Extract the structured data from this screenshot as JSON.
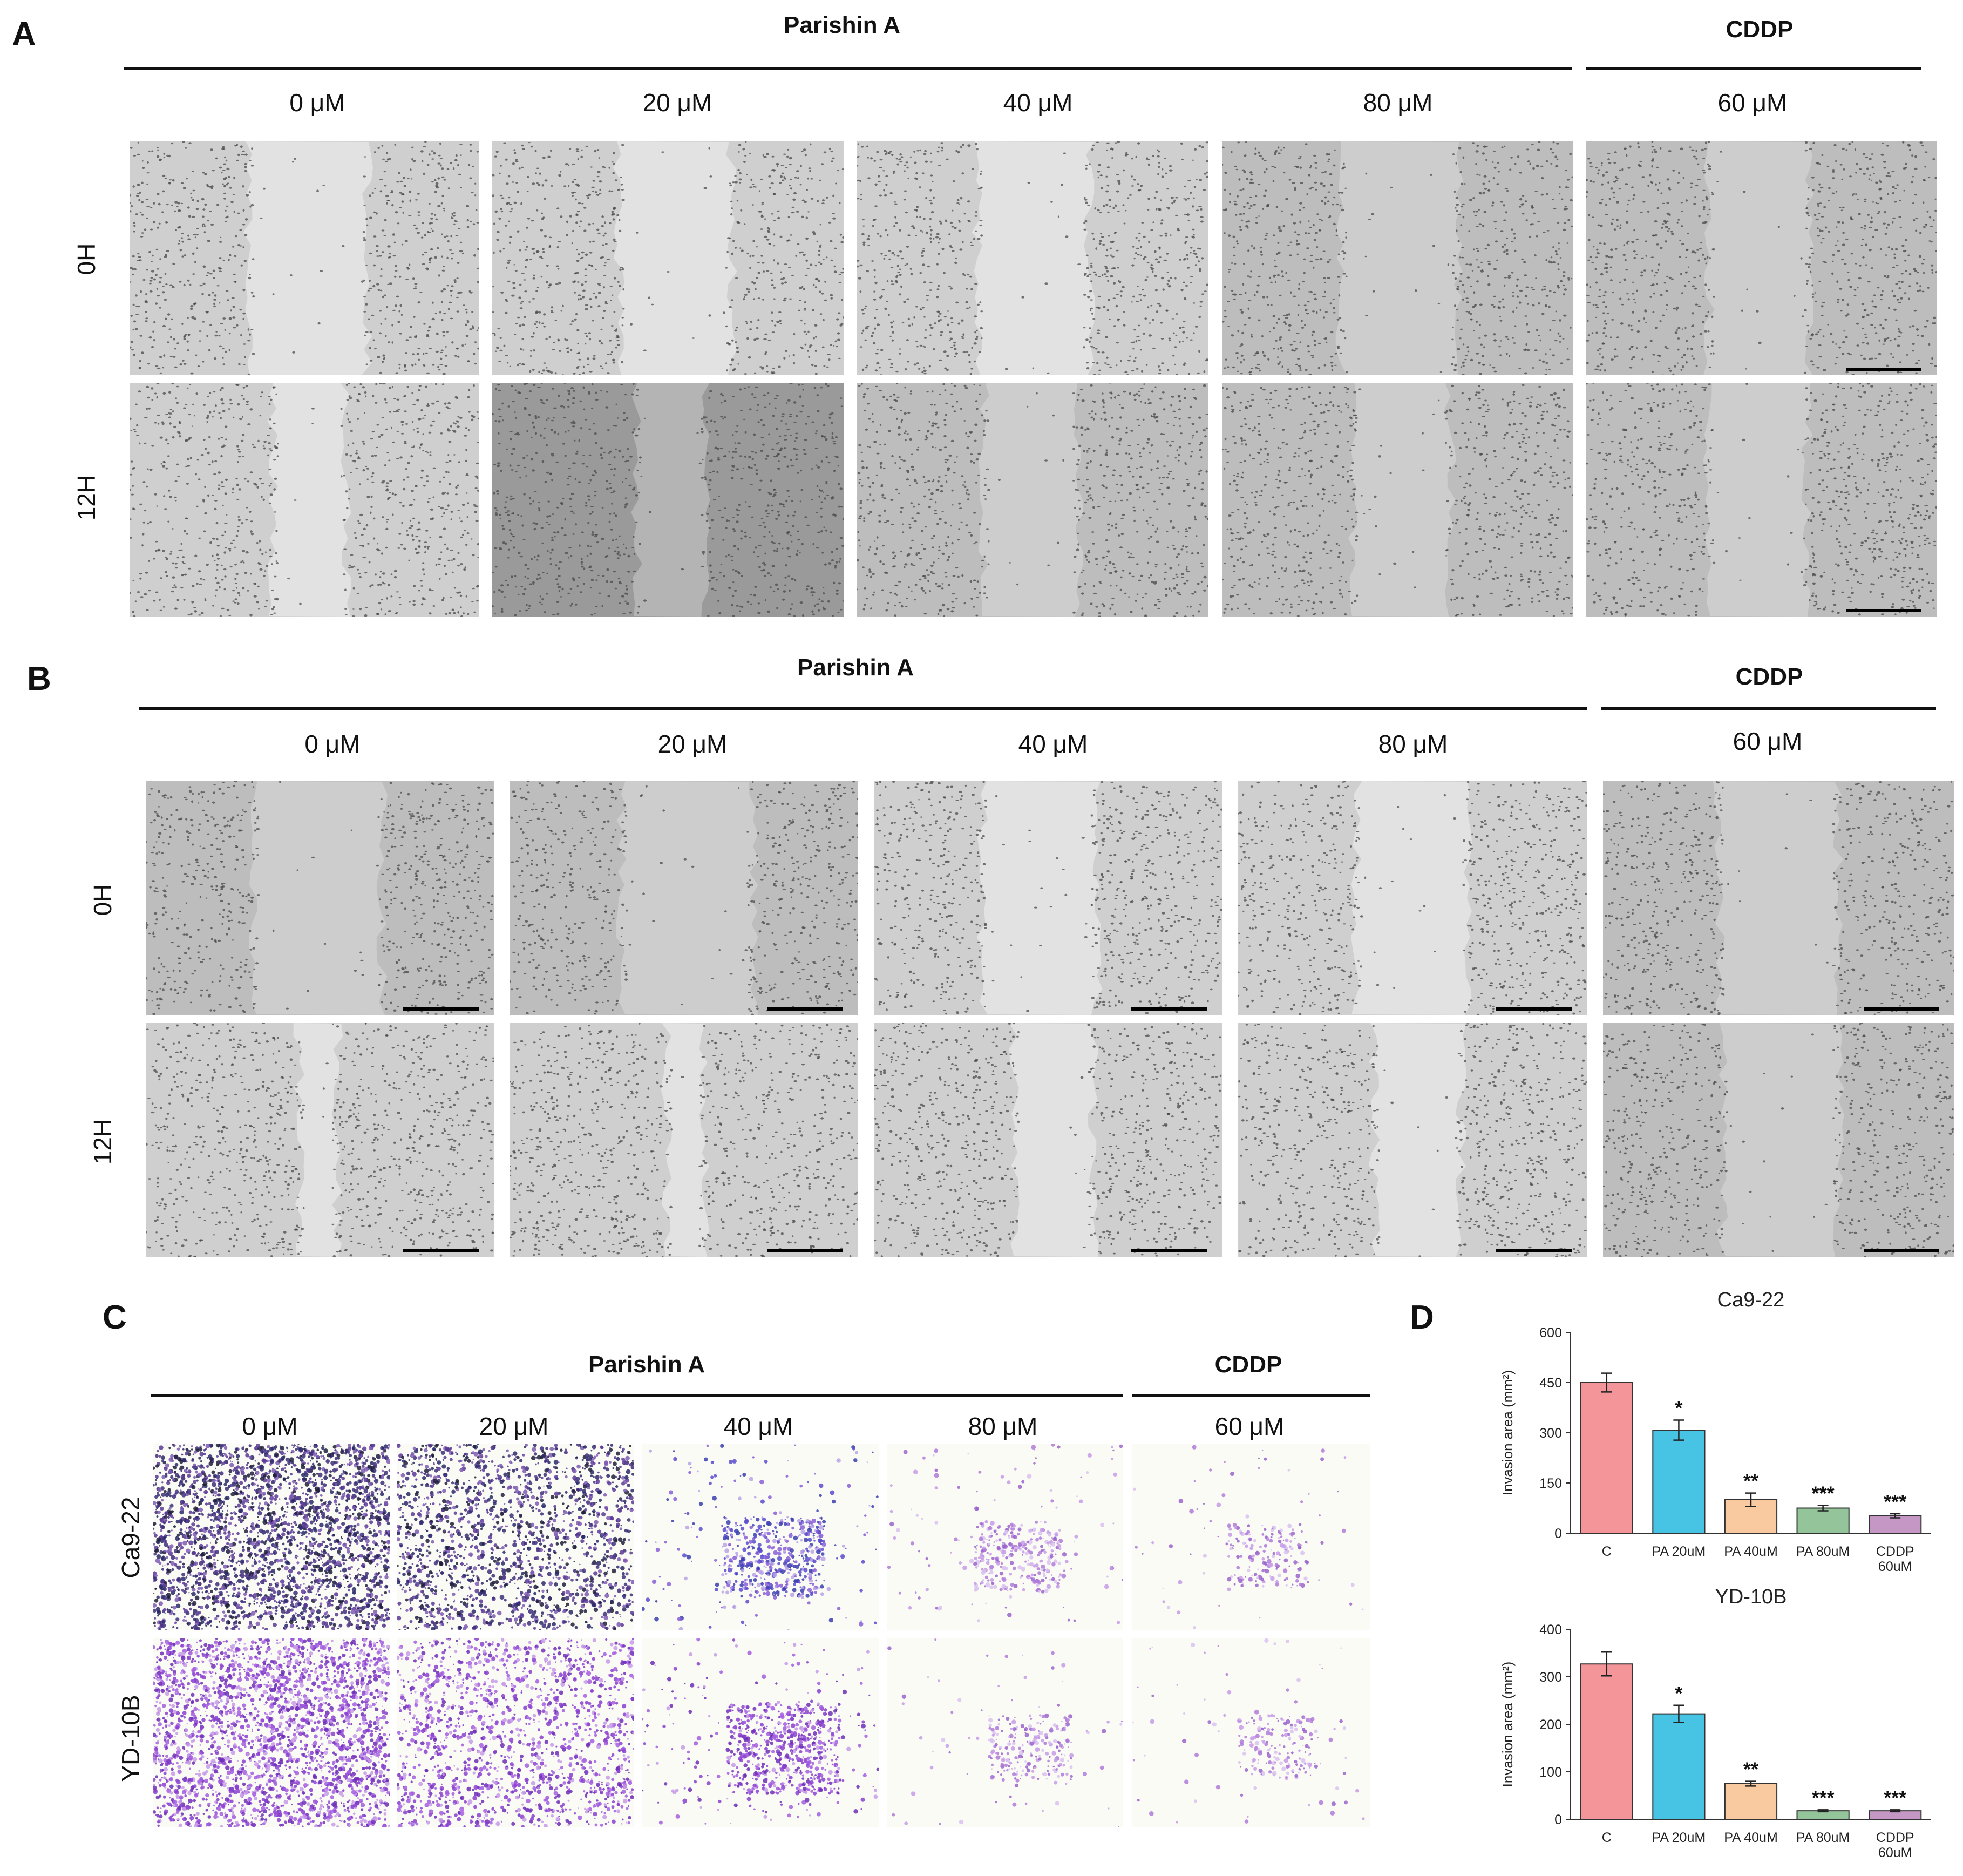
{
  "panels": {
    "A": {
      "letter": "A",
      "group_left": "Parishin A",
      "group_right": "CDDP",
      "concentrations": [
        "0 μM",
        "20 μM",
        "40 μM",
        "80 μM",
        "60 μM"
      ],
      "rows": [
        "0H",
        "12H"
      ]
    },
    "B": {
      "letter": "B",
      "group_left": "Parishin A",
      "group_right": "CDDP",
      "concentrations": [
        "0 μM",
        "20 μM",
        "40 μM",
        "80 μM",
        "60 μM"
      ],
      "rows": [
        "0H",
        "12H"
      ]
    },
    "C": {
      "letter": "C",
      "group_left": "Parishin A",
      "group_right": "CDDP",
      "concentrations": [
        "0 μM",
        "20 μM",
        "40 μM",
        "80 μM",
        "60 μM"
      ],
      "rows": [
        "Ca9-22",
        "YD-10B"
      ]
    },
    "D": {
      "letter": "D"
    }
  },
  "chart_data": [
    {
      "type": "bar",
      "title": "Ca9-22",
      "ylabel": "Invasion area (mm²)",
      "categories": [
        "C",
        "PA 20uM",
        "PA 40uM",
        "PA 80uM",
        "CDDP 60uM"
      ],
      "values": [
        450,
        308,
        100,
        75,
        52
      ],
      "errors": [
        28,
        30,
        20,
        8,
        6
      ],
      "significance": [
        "",
        "*",
        "**",
        "***",
        "***"
      ],
      "colors": [
        "#f4959a",
        "#47c4e3",
        "#f9c9a0",
        "#93c49a",
        "#c497c4"
      ],
      "ylim": [
        0,
        600
      ],
      "yticks": [
        0,
        150,
        300,
        450,
        600
      ]
    },
    {
      "type": "bar",
      "title": "YD-10B",
      "ylabel": "Invasion area (mm²)",
      "categories": [
        "C",
        "PA 20uM",
        "PA 40uM",
        "PA 80uM",
        "CDDP 60uM"
      ],
      "values": [
        327,
        222,
        75,
        18,
        18
      ],
      "errors": [
        25,
        18,
        5,
        2,
        2
      ],
      "significance": [
        "",
        "*",
        "**",
        "***",
        "***"
      ],
      "colors": [
        "#f4959a",
        "#47c4e3",
        "#f9c9a0",
        "#93c49a",
        "#c497c4"
      ],
      "ylim": [
        0,
        400
      ],
      "yticks": [
        0,
        100,
        200,
        300,
        400
      ]
    }
  ],
  "colors": {
    "micrograph_cells": "#4a4a4a",
    "micrograph_gap": "#dcdcdc",
    "stain_dark": "#2a2a6a",
    "stain_purple": "#8a3fd0",
    "stain_light": "#c79be8"
  }
}
